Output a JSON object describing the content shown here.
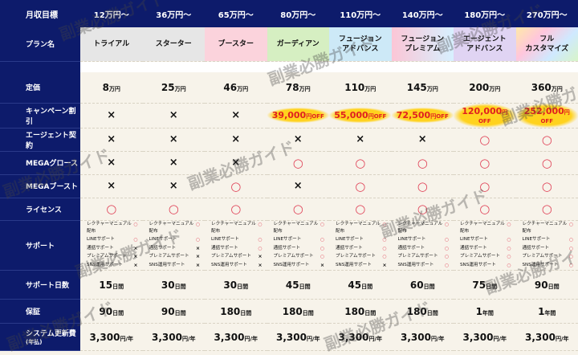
{
  "watermark": "副業必勝ガイド",
  "header": {
    "label": "月収目標",
    "values": [
      "12万円〜",
      "36万円〜",
      "65万円〜",
      "80万円〜",
      "110万円〜",
      "140万円〜",
      "180万円〜",
      "270万円〜"
    ]
  },
  "plans": {
    "label": "プラン名",
    "names": [
      "トライアル",
      "スターター",
      "ブースター",
      "ガーディアン",
      "フュージョン\nアドバンス",
      "フュージョン\nプレミアム",
      "エージェント\nアドバンス",
      "フル\nカスタマイズ"
    ],
    "colors": [
      "#e6e6e6",
      "#e6e6e6",
      "#fbd3dc",
      "#d6efc2",
      "#cde9f7",
      "linear-gradient(90deg,#fbc6d6,#d7f0ff)",
      "#e0d4f3",
      "linear-gradient(135deg,#ffe9a8,#ffc6dc,#cfe9ff,#d8f5c8)"
    ]
  },
  "price": {
    "label": "定価",
    "items": [
      {
        "amount": "8",
        "unit": "万円"
      },
      {
        "amount": "25",
        "unit": "万円"
      },
      {
        "amount": "46",
        "unit": "万円"
      },
      {
        "amount": "78",
        "unit": "万円"
      },
      {
        "amount": "110",
        "unit": "万円"
      },
      {
        "amount": "145",
        "unit": "万円"
      },
      {
        "amount": "200",
        "unit": "万円"
      },
      {
        "amount": "360",
        "unit": "万円"
      }
    ]
  },
  "campaign": {
    "label": "キャンペーン割引",
    "items": [
      "×",
      "×",
      "×",
      {
        "amount": "39,000",
        "unit": "円OFF"
      },
      {
        "amount": "55,000",
        "unit": "円OFF"
      },
      {
        "amount": "72,500",
        "unit": "円OFF"
      },
      {
        "amount": "120,000",
        "unit": "円OFF"
      },
      {
        "amount": "252,000",
        "unit": "円OFF"
      }
    ]
  },
  "agent": {
    "label": "エージェント契約",
    "values": [
      "×",
      "×",
      "×",
      "×",
      "×",
      "×",
      "○",
      "○"
    ]
  },
  "growth": {
    "label": "MEGAグロース",
    "values": [
      "×",
      "×",
      "×",
      "○",
      "○",
      "○",
      "○",
      "○"
    ]
  },
  "boost": {
    "label": "MEGAブースト",
    "values": [
      "×",
      "×",
      "○",
      "×",
      "○",
      "○",
      "○",
      "○"
    ]
  },
  "license": {
    "label": "ライセンス",
    "values": [
      "○",
      "○",
      "○",
      "○",
      "○",
      "○",
      "○",
      "○"
    ]
  },
  "support": {
    "label": "サポート",
    "items": [
      "レクチャーマニュアル配布",
      "LINEサポート",
      "通話サポート",
      "プレミアムサポート",
      "SNS運用サポート"
    ],
    "marks": [
      [
        "○",
        "○",
        "×",
        "×",
        "×"
      ],
      [
        "○",
        "○",
        "×",
        "×",
        "×"
      ],
      [
        "○",
        "○",
        "○",
        "×",
        "×"
      ],
      [
        "○",
        "○",
        "○",
        "○",
        "×"
      ],
      [
        "○",
        "○",
        "○",
        "○",
        "×"
      ],
      [
        "○",
        "○",
        "○",
        "○",
        "○"
      ],
      [
        "○",
        "○",
        "○",
        "○",
        "○"
      ],
      [
        "○",
        "○",
        "○",
        "○",
        "○"
      ]
    ]
  },
  "support_days": {
    "label": "サポート日数",
    "items": [
      {
        "amount": "15",
        "unit": "日間"
      },
      {
        "amount": "30",
        "unit": "日間"
      },
      {
        "amount": "30",
        "unit": "日間"
      },
      {
        "amount": "45",
        "unit": "日間"
      },
      {
        "amount": "45",
        "unit": "日間"
      },
      {
        "amount": "60",
        "unit": "日間"
      },
      {
        "amount": "75",
        "unit": "日間"
      },
      {
        "amount": "90",
        "unit": "日間"
      }
    ]
  },
  "guarantee": {
    "label": "保証",
    "items": [
      {
        "amount": "90",
        "unit": "日間"
      },
      {
        "amount": "90",
        "unit": "日間"
      },
      {
        "amount": "180",
        "unit": "日間"
      },
      {
        "amount": "180",
        "unit": "日間"
      },
      {
        "amount": "180",
        "unit": "日間"
      },
      {
        "amount": "180",
        "unit": "日間"
      },
      {
        "amount": "1",
        "unit": "年間"
      },
      {
        "amount": "1",
        "unit": "年間"
      }
    ]
  },
  "system": {
    "label": "システム更新費",
    "sublabel": "(年払)",
    "items": [
      {
        "amount": "3,300",
        "unit": "円/年"
      },
      {
        "amount": "3,300",
        "unit": "円/年"
      },
      {
        "amount": "3,300",
        "unit": "円/年"
      },
      {
        "amount": "3,300",
        "unit": "円/年"
      },
      {
        "amount": "3,300",
        "unit": "円/年"
      },
      {
        "amount": "3,300",
        "unit": "円/年"
      },
      {
        "amount": "3,300",
        "unit": "円/年"
      },
      {
        "amount": "3,300",
        "unit": "円/年"
      }
    ]
  }
}
